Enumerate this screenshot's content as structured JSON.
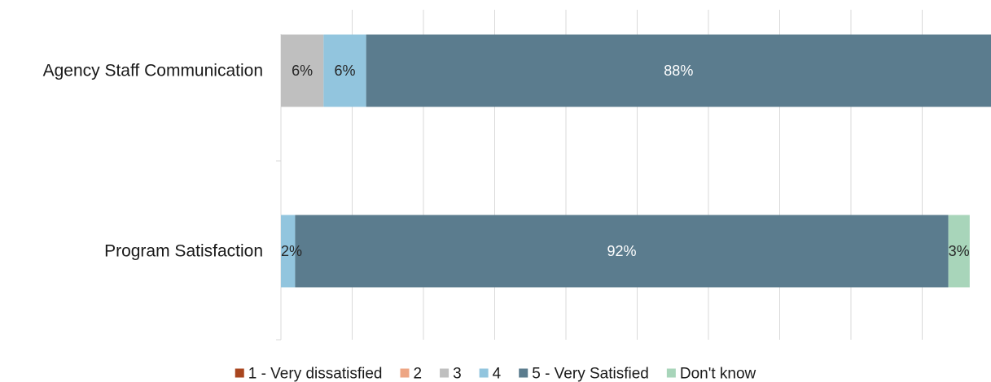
{
  "chart_data": {
    "type": "bar",
    "orientation": "horizontal",
    "stacked": true,
    "percent_stacked": true,
    "categories": [
      "Agency Staff Communication",
      "Program Satisfaction"
    ],
    "series": [
      {
        "name": "1 - Very dissatisfied",
        "color": "#a9461f",
        "values": [
          0,
          0
        ],
        "labels": [
          "",
          ""
        ]
      },
      {
        "name": "2",
        "color": "#eda583",
        "values": [
          0,
          0
        ],
        "labels": [
          "",
          ""
        ]
      },
      {
        "name": "3",
        "color": "#bfbfbf",
        "values": [
          6,
          0
        ],
        "labels": [
          "6%",
          ""
        ]
      },
      {
        "name": "4",
        "color": "#92c5de",
        "values": [
          6,
          2
        ],
        "labels": [
          "6%",
          "2%"
        ]
      },
      {
        "name": "5 - Very Satisfied",
        "color": "#5b7c8e",
        "values": [
          88,
          92
        ],
        "labels": [
          "88%",
          "92%"
        ]
      },
      {
        "name": "Don't know",
        "color": "#a8d5ba",
        "values": [
          0,
          3
        ],
        "labels": [
          "",
          "3%"
        ]
      }
    ],
    "xlim": [
      0,
      100
    ],
    "grid": true,
    "legend_position": "bottom"
  }
}
